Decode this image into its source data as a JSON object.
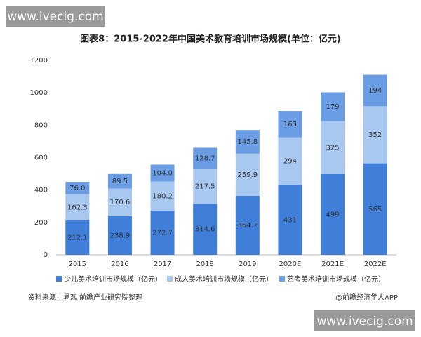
{
  "watermarks": [
    "www.ivecig.com",
    "www.ivecig.com"
  ],
  "chart_data": {
    "type": "stacked_bar",
    "title": "图表8：2015-2022年中国美术教育培训市场规模(单位：亿元)",
    "categories": [
      "2015",
      "2016",
      "2017",
      "2018",
      "2019",
      "2020E",
      "2021E",
      "2022E"
    ],
    "series": [
      {
        "name": "少儿美术培训市场规模（亿元）",
        "color": "#3f7fd9",
        "values": [
          212.1,
          238.9,
          272.7,
          314.6,
          364.7,
          431,
          499,
          565
        ]
      },
      {
        "name": "成人美术培训市场规模（亿元）",
        "color": "#a9c8f0",
        "values": [
          162.3,
          170.6,
          180.2,
          217.5,
          259.9,
          294,
          325,
          352
        ]
      },
      {
        "name": "艺考美术培训市场规模（亿元）",
        "color": "#6a9de3",
        "values": [
          76.0,
          89.5,
          104.0,
          128.7,
          145.8,
          163,
          179,
          194
        ],
        "value_labels": [
          "76.0",
          "89.5",
          "104.0",
          "128.7",
          "145.8",
          "163",
          "179",
          "194"
        ]
      }
    ],
    "ylim": [
      0,
      1200
    ],
    "yticks": [
      0,
      200,
      400,
      600,
      800,
      1000,
      1200
    ],
    "grid": false,
    "source": "资料来源：易观 前瞻产业研究院整理",
    "credit": "@前瞻经济学人APP"
  }
}
